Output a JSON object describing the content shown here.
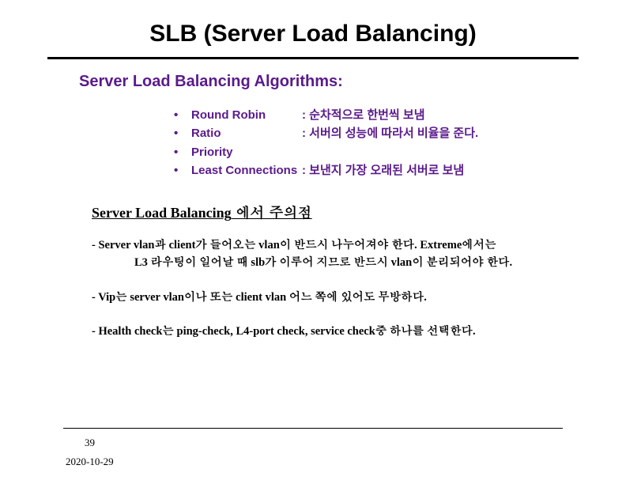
{
  "colors": {
    "accent": "#5a1a8b",
    "text": "#000000",
    "background": "#ffffff"
  },
  "title": "SLB (Server Load Balancing)",
  "subtitle": "Server Load Balancing Algorithms:",
  "algorithms": [
    {
      "bullet": "•",
      "name": "Round Robin",
      "desc": ": 순차적으로 한번씩 보냄"
    },
    {
      "bullet": "•",
      "name": "Ratio",
      "desc": ": 서버의 성능에 따라서 비율을 준다."
    },
    {
      "bullet": "•",
      "name": "Priority",
      "desc": ""
    },
    {
      "bullet": "•",
      "name": "Least Connections",
      "desc": ": 보낸지 가장 오래된 서버로 보냄"
    }
  ],
  "caution_title_en": "Server Load Balancing",
  "caution_title_kr": " 에서 주의점",
  "notes": {
    "n0_a": "- Server vlan과 client가 들어오는 vlan이 반드시 나누어져야 한다. Extreme에서는",
    "n0_b": "L3 라우팅이 일어날 때 slb가 이루어 지므로 반드시 vlan이 분리되어야 한다.",
    "n1": "- Vip는 server vlan이나 또는 client vlan 어느 쪽에 있어도 무방하다.",
    "n2": "- Health check는 ping-check, L4-port check, service check중 하나를 선택한다."
  },
  "page_number": "39",
  "date": "2020-10-29",
  "fonts": {
    "title_size_pt": 30,
    "subtitle_size_pt": 20,
    "body_size_pt": 15,
    "notes_size_pt": 14.5,
    "footer_size_pt": 13
  }
}
